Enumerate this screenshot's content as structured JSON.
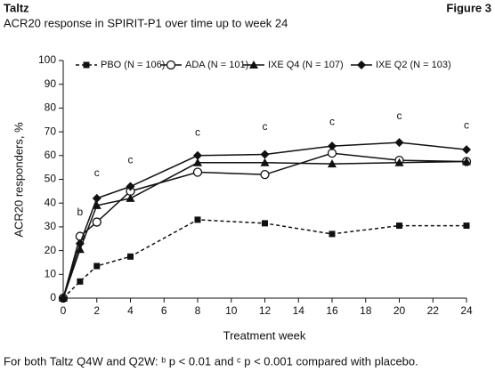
{
  "brand": "Taltz",
  "figure": "Figure 3",
  "chart_data": {
    "type": "line",
    "title": "ACR20 response in SPIRIT-P1 over time up to week 24",
    "xlabel": "Treatment week",
    "ylabel": "ACR20 responders, %",
    "x": [
      0,
      1,
      2,
      4,
      8,
      12,
      16,
      20,
      24
    ],
    "xlim": [
      0,
      24
    ],
    "xticks": [
      0,
      2,
      4,
      6,
      8,
      10,
      12,
      14,
      16,
      18,
      20,
      22,
      24
    ],
    "ylim": [
      0,
      100
    ],
    "yticks": [
      0,
      10,
      20,
      30,
      40,
      50,
      60,
      70,
      80,
      90,
      100
    ],
    "series": [
      {
        "name": "PBO (N = 106)",
        "color": "#111111",
        "dash": true,
        "marker": "square",
        "values": [
          0,
          7,
          13.5,
          17.5,
          33,
          31.5,
          27,
          30.5,
          30.5
        ]
      },
      {
        "name": "ADA (N = 101)",
        "color": "#111111",
        "dash": false,
        "marker": "circle",
        "values": [
          0,
          26,
          32,
          45,
          53,
          52,
          61,
          58,
          57.5
        ]
      },
      {
        "name": "IXE Q4 (N = 107)",
        "color": "#111111",
        "dash": false,
        "marker": "triangle",
        "values": [
          0,
          20.5,
          39,
          42,
          57,
          57,
          56.5,
          57,
          57.5
        ]
      },
      {
        "name": "IXE Q2 (N = 103)",
        "color": "#111111",
        "dash": false,
        "marker": "diamond",
        "values": [
          0,
          23,
          42,
          47,
          60,
          60.5,
          64,
          65.5,
          62.5
        ]
      }
    ],
    "annotations": [
      {
        "text": "b",
        "x": 1,
        "y": 36
      },
      {
        "text": "c",
        "x": 2,
        "y": 52.5
      },
      {
        "text": "c",
        "x": 4,
        "y": 58
      },
      {
        "text": "c",
        "x": 8,
        "y": 69.5
      },
      {
        "text": "c",
        "x": 12,
        "y": 72
      },
      {
        "text": "c",
        "x": 16,
        "y": 74
      },
      {
        "text": "c",
        "x": 20,
        "y": 76.5
      },
      {
        "text": "c",
        "x": 24,
        "y": 72.5
      }
    ],
    "footnote": "For both Taltz Q4W and Q2W: ᵇ p < 0.01 and ᶜ p < 0.001 compared with placebo."
  }
}
